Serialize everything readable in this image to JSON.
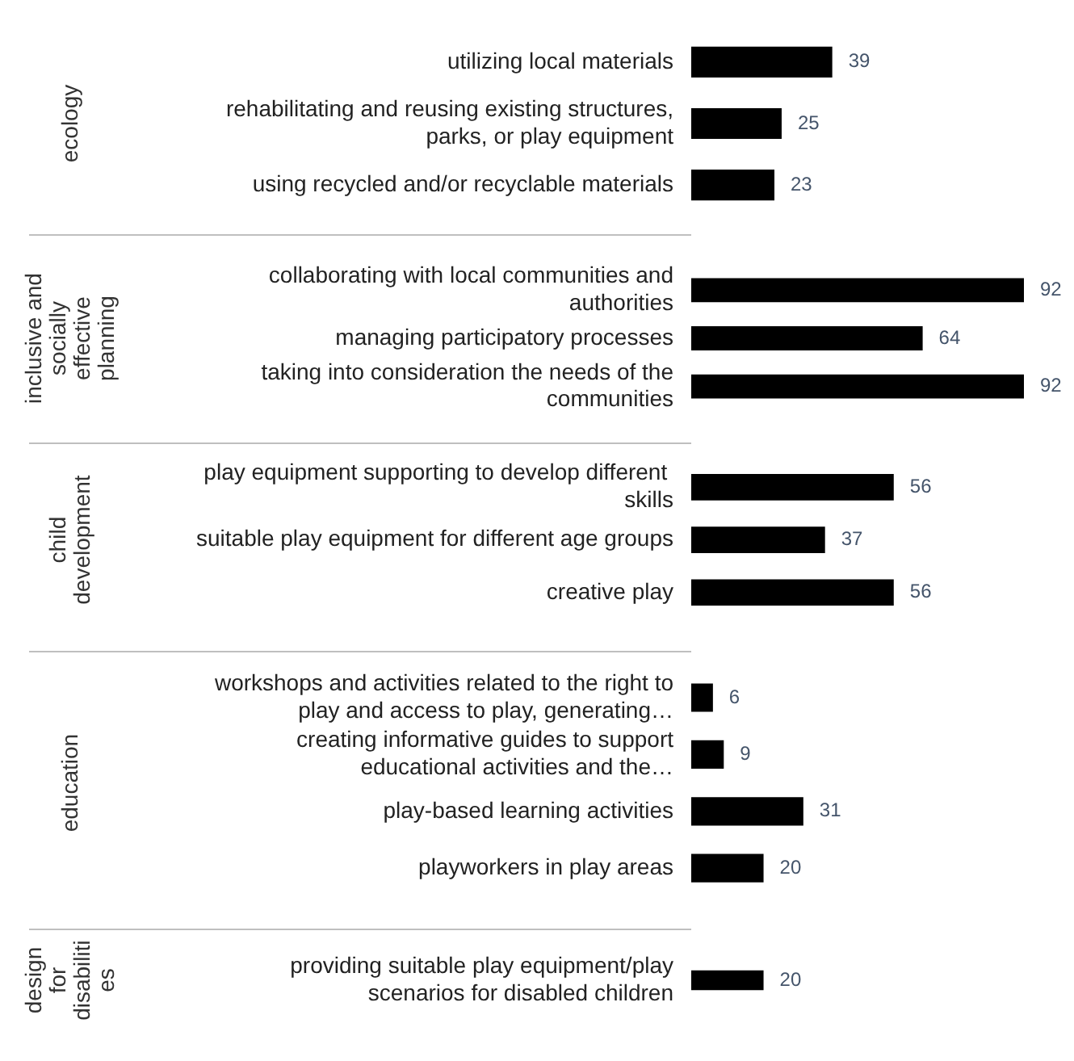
{
  "chart_data": [
    {
      "type": "bar",
      "orientation": "horizontal",
      "data_labels": true,
      "legend": false,
      "color": "#000000",
      "ylabel": "ecology",
      "categories": [
        "utilizing local materials",
        "rehabilitating and reusing existing structures, parks, or play equipment",
        "using recycled and/or recyclable materials"
      ],
      "values": [
        39,
        25,
        23
      ]
    },
    {
      "type": "bar",
      "orientation": "horizontal",
      "data_labels": true,
      "legend": false,
      "color": "#000000",
      "ylabel": "inclusive and socially effective planning",
      "categories": [
        "collaborating with local communities and authorities",
        "managing participatory processes",
        "taking into consideration the needs of the communities"
      ],
      "values": [
        92,
        64,
        92
      ]
    },
    {
      "type": "bar",
      "orientation": "horizontal",
      "data_labels": true,
      "legend": false,
      "color": "#000000",
      "ylabel": "child development",
      "categories": [
        "play equipment supporting to develop different  skills",
        "suitable play equipment for different age groups",
        "creative play"
      ],
      "values": [
        56,
        37,
        56
      ]
    },
    {
      "type": "bar",
      "orientation": "horizontal",
      "data_labels": true,
      "legend": false,
      "color": "#000000",
      "ylabel": "education",
      "categories": [
        "workshops and activities related to the right to play and access to play, generating…",
        "creating informative guides to support educational activities and the…",
        "play-based learning activities",
        "playworkers in play areas"
      ],
      "values": [
        6,
        9,
        31,
        20
      ]
    },
    {
      "type": "bar",
      "orientation": "horizontal",
      "data_labels": true,
      "legend": false,
      "color": "#000000",
      "ylabel": "design for disabilities",
      "categories": [
        "providing suitable play equipment/play scenarios for disabled children"
      ],
      "values": [
        20
      ]
    }
  ]
}
